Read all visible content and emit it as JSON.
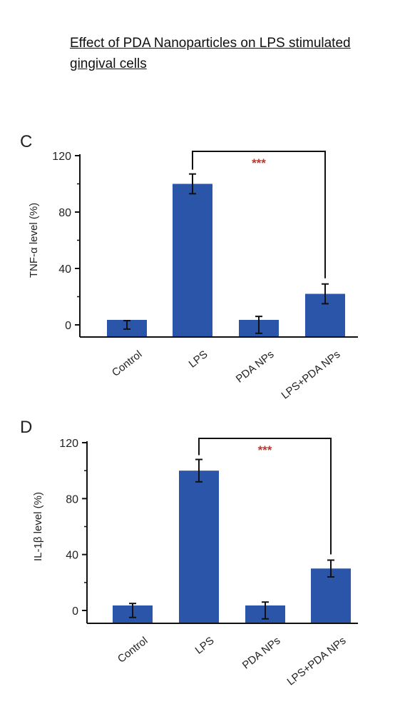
{
  "title": "Effect of PDA Nanoparticles on LPS stimulated gingival cells",
  "colors": {
    "bar": "#2a55a8",
    "axis": "#111111",
    "significance": "#c0392b"
  },
  "chart_data": [
    {
      "type": "bar",
      "panel_label": "C",
      "ylabel": "TNF-α level (%)",
      "categories": [
        "Control",
        "LPS",
        "PDA NPs",
        "LPS+PDA NPs"
      ],
      "values": [
        0,
        100,
        0,
        22
      ],
      "errors": [
        3,
        7,
        6,
        7
      ],
      "yticks": [
        0,
        40,
        80,
        120
      ],
      "ylim": [
        -5,
        120
      ],
      "significance": {
        "from": "LPS",
        "to": "LPS+PDA NPs",
        "label": "***"
      }
    },
    {
      "type": "bar",
      "panel_label": "D",
      "ylabel": "IL-1β level (%)",
      "categories": [
        "Control",
        "LPS",
        "PDA NPs",
        "LPS+PDA NPs"
      ],
      "values": [
        0,
        100,
        0,
        30
      ],
      "errors": [
        5,
        8,
        6,
        6
      ],
      "yticks": [
        0,
        40,
        80,
        120
      ],
      "ylim": [
        -5,
        120
      ],
      "significance": {
        "from": "LPS",
        "to": "LPS+PDA NPs",
        "label": "***"
      }
    }
  ]
}
